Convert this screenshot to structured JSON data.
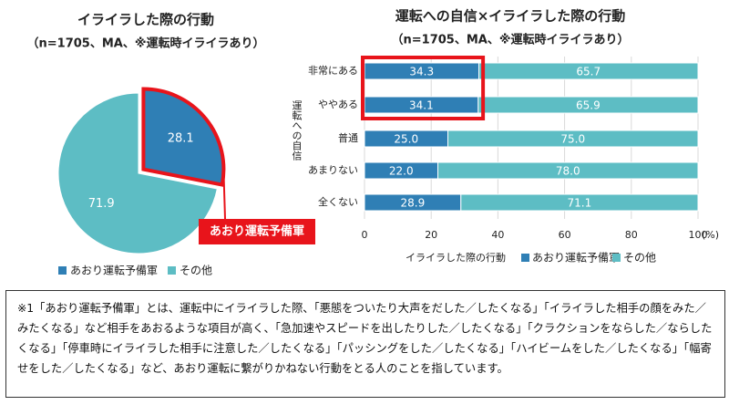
{
  "chart_data": [
    {
      "type": "pie",
      "title": "イライラした際の行動",
      "subtitle": "（n=1705、MA、※運転時イライラあり）",
      "categories": [
        "あおり運転予備軍",
        "その他"
      ],
      "values": [
        28.1,
        71.9
      ],
      "colors": [
        "#2f7fb5",
        "#5dbdc4"
      ],
      "annotation": "あおり運転予備軍"
    },
    {
      "type": "stacked_barh",
      "title": "運転への自信×イライラした際の行動",
      "subtitle": "（n=1705、MA、※運転時イライラあり）",
      "ylabel": "運転への自信",
      "xlabel": "イライラした際の行動",
      "x_unit": "(%)",
      "categories": [
        "非常にある",
        "ややある",
        "普通",
        "あまりない",
        "全くない"
      ],
      "series": [
        {
          "name": "あおり運転予備軍",
          "color": "#2f7fb5",
          "values": [
            34.3,
            34.1,
            25,
            22,
            28.9
          ],
          "value_labels": [
            "34.3",
            "34.1",
            "25.0",
            "22.0",
            "28.9"
          ]
        },
        {
          "name": "その他",
          "color": "#5dbdc4",
          "values": [
            65.7,
            65.9,
            75,
            78,
            71.1
          ],
          "value_labels": [
            "65.7",
            "65.9",
            "75.0",
            "78.0",
            "71.1"
          ]
        }
      ],
      "xlim": [
        0,
        100
      ],
      "xticks": [
        0,
        20,
        40,
        60,
        80,
        100
      ]
    }
  ],
  "note": "※1「あおり運転予備軍」とは、運転中にイライラした際、「悪態をついたり大声をだした／したくなる」「イライラした相手の顔をみた／みたくなる」など相手をあおるような項目が高く、「急加速やスピードを出したりした／したくなる」「クラクションをならした／ならしたくなる」「停車時にイライラした相手に注意した／したくなる」「パッシングをした／したくなる」「ハイビームをした／したくなる」「幅寄せをした／したくなる」など、あおり運転に繋がりかねない行動をとる人のことを指しています。"
}
